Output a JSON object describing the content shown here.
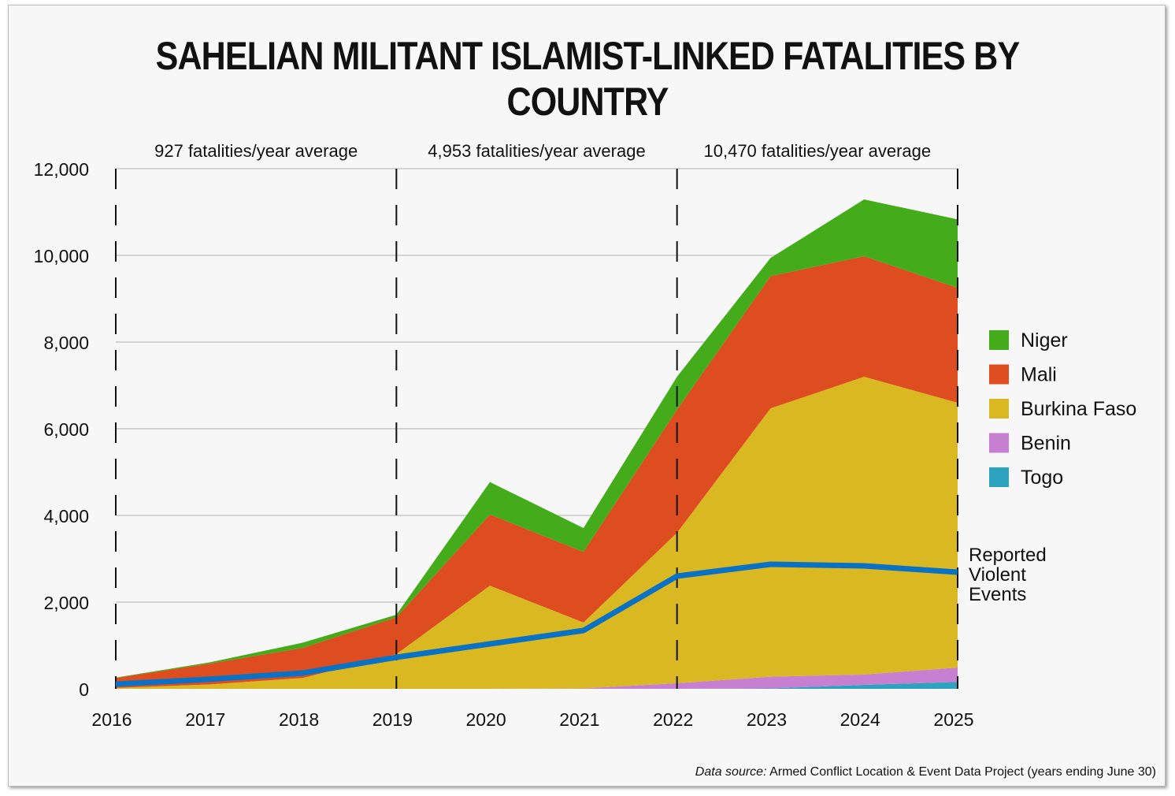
{
  "chart_data": {
    "type": "area",
    "stacked": true,
    "title": "SAHELIAN MILITANT ISLAMIST-LINKED FATALITIES BY COUNTRY",
    "xlabel": "",
    "ylabel": "",
    "x": [
      2016,
      2017,
      2018,
      2019,
      2020,
      2021,
      2022,
      2023,
      2024,
      2025
    ],
    "ylim": [
      0,
      12000
    ],
    "yticks": [
      0,
      2000,
      4000,
      6000,
      8000,
      10000,
      12000
    ],
    "ytick_labels": [
      "0",
      "2,000",
      "4,000",
      "6,000",
      "8,000",
      "10,000",
      "12,000"
    ],
    "grid": true,
    "legend_position": "right",
    "series": [
      {
        "name": "Togo",
        "color": "#2ea3bf",
        "values": [
          0,
          0,
          0,
          0,
          0,
          0,
          0,
          10,
          90,
          160
        ]
      },
      {
        "name": "Benin",
        "color": "#c77fd2",
        "values": [
          0,
          0,
          0,
          0,
          0,
          10,
          130,
          270,
          240,
          330
        ]
      },
      {
        "name": "Burkina Faso",
        "color": "#dab822",
        "values": [
          20,
          100,
          250,
          800,
          2380,
          1520,
          3470,
          6190,
          6870,
          6110
        ]
      },
      {
        "name": "Mali",
        "color": "#dd4d20",
        "values": [
          230,
          480,
          695,
          850,
          1640,
          1630,
          2840,
          3050,
          2780,
          2650
        ]
      },
      {
        "name": "Niger",
        "color": "#44ab1a",
        "values": [
          10,
          30,
          120,
          60,
          750,
          550,
          760,
          420,
          1310,
          1580
        ]
      }
    ],
    "line_series": {
      "name": "Reported Violent Events",
      "label_lines": [
        "Reported",
        "Violent",
        "Events"
      ],
      "color": "#0a72c4",
      "values": [
        110,
        220,
        364,
        727,
        1036,
        1345,
        2600,
        2873,
        2836,
        2690
      ]
    },
    "period_dividers": [
      2016,
      2019,
      2022,
      2025
    ],
    "annotations": [
      {
        "text": "927 fatalities/year average",
        "from": 2016,
        "to": 2019
      },
      {
        "text": "4,953 fatalities/year average",
        "from": 2019,
        "to": 2022
      },
      {
        "text": "10,470 fatalities/year average",
        "from": 2022,
        "to": 2025
      }
    ],
    "legend_order": [
      "Niger",
      "Mali",
      "Burkina Faso",
      "Benin",
      "Togo"
    ]
  },
  "source": {
    "label": "Data source:",
    "text": " Armed Conflict Location & Event Data Project (years ending June 30)"
  }
}
